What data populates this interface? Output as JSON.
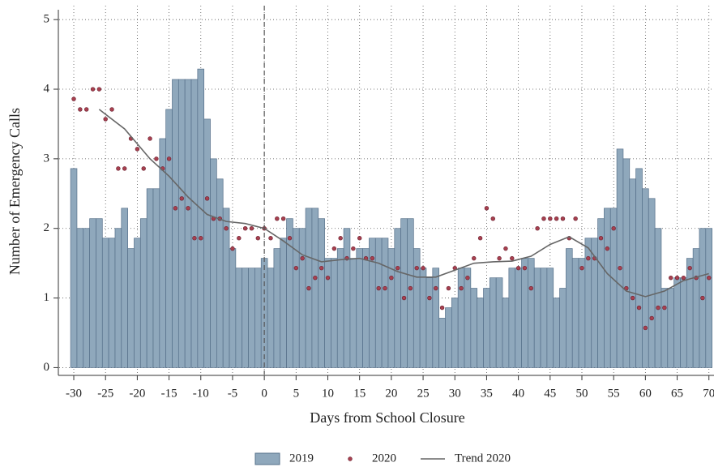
{
  "chart_data": {
    "type": "bar-scatter-line",
    "x_label": "Days from School Closure",
    "y_label": "Number of Emergency Calls",
    "x": [
      -30,
      -29,
      -28,
      -27,
      -26,
      -25,
      -24,
      -23,
      -22,
      -21,
      -20,
      -19,
      -18,
      -17,
      -16,
      -15,
      -14,
      -13,
      -12,
      -11,
      -10,
      -9,
      -8,
      -7,
      -6,
      -5,
      -4,
      -3,
      -2,
      -1,
      0,
      1,
      2,
      3,
      4,
      5,
      6,
      7,
      8,
      9,
      10,
      11,
      12,
      13,
      14,
      15,
      16,
      17,
      18,
      19,
      20,
      21,
      22,
      23,
      24,
      25,
      26,
      27,
      28,
      29,
      30,
      31,
      32,
      33,
      34,
      35,
      36,
      37,
      38,
      39,
      40,
      41,
      42,
      43,
      44,
      45,
      46,
      47,
      48,
      49,
      50,
      51,
      52,
      53,
      54,
      55,
      56,
      57,
      58,
      59,
      60,
      61,
      62,
      63,
      64,
      65,
      66,
      67,
      68,
      69,
      70
    ],
    "series": [
      {
        "name": "2019",
        "kind": "bar",
        "color": "#8fa8bc",
        "values": [
          2.86,
          2.0,
          2.0,
          2.14,
          2.14,
          1.86,
          1.86,
          2.0,
          2.29,
          1.71,
          1.86,
          2.14,
          2.57,
          2.57,
          3.29,
          3.71,
          4.14,
          4.14,
          4.14,
          4.14,
          4.29,
          3.57,
          3.0,
          2.71,
          2.29,
          1.71,
          1.43,
          1.43,
          1.43,
          1.43,
          1.57,
          1.43,
          1.71,
          1.86,
          2.14,
          2.0,
          2.0,
          2.29,
          2.29,
          2.14,
          1.57,
          1.57,
          1.71,
          2.0,
          1.57,
          1.71,
          1.71,
          1.86,
          1.86,
          1.86,
          1.71,
          2.0,
          2.14,
          2.14,
          1.71,
          1.43,
          1.29,
          1.43,
          0.71,
          0.86,
          1.0,
          1.43,
          1.43,
          1.14,
          1.0,
          1.14,
          1.29,
          1.29,
          1.0,
          1.43,
          1.43,
          1.57,
          1.57,
          1.43,
          1.43,
          1.43,
          1.0,
          1.14,
          1.71,
          1.57,
          1.57,
          1.86,
          1.86,
          2.14,
          2.29,
          2.29,
          3.14,
          3.0,
          2.71,
          2.86,
          2.57,
          2.43,
          2.0,
          1.14,
          1.14,
          1.29,
          1.29,
          1.57,
          1.71,
          2.0,
          2.0
        ]
      },
      {
        "name": "2020",
        "kind": "scatter",
        "color": "#a8404f",
        "values": [
          3.86,
          3.71,
          3.71,
          4.0,
          4.0,
          3.57,
          3.71,
          2.86,
          2.86,
          3.29,
          3.14,
          2.86,
          3.29,
          3.0,
          2.86,
          3.0,
          2.29,
          2.43,
          2.29,
          1.86,
          1.86,
          2.43,
          2.14,
          2.14,
          2.0,
          1.71,
          1.86,
          2.0,
          2.0,
          1.86,
          2.0,
          1.86,
          2.14,
          2.14,
          1.86,
          1.43,
          1.57,
          1.14,
          1.29,
          1.43,
          1.29,
          1.71,
          1.86,
          1.57,
          1.71,
          1.86,
          1.57,
          1.57,
          1.14,
          1.14,
          1.29,
          1.43,
          1.0,
          1.14,
          1.43,
          1.43,
          1.0,
          1.14,
          0.86,
          1.14,
          1.43,
          1.14,
          1.29,
          1.57,
          1.86,
          2.29,
          2.14,
          1.57,
          1.71,
          1.57,
          1.43,
          1.43,
          1.14,
          2.0,
          2.14,
          2.14,
          2.14,
          2.14,
          1.86,
          2.14,
          1.43,
          1.57,
          1.57,
          1.86,
          1.71,
          2.0,
          1.43,
          1.14,
          1.0,
          0.86,
          0.57,
          0.71,
          0.86,
          0.86,
          1.29,
          1.29,
          1.29,
          1.43,
          1.29,
          1.0,
          1.29
        ]
      },
      {
        "name": "Trend 2020",
        "kind": "line",
        "color": "#666666",
        "x": [
          -26,
          -22,
          -18,
          -15,
          -12,
          -9,
          -6,
          -3,
          0,
          3,
          6,
          9,
          12,
          15,
          18,
          21,
          24,
          27,
          30,
          33,
          36,
          39,
          42,
          45,
          48,
          51,
          54,
          57,
          60,
          63,
          66,
          70
        ],
        "values": [
          3.71,
          3.43,
          3.0,
          2.75,
          2.45,
          2.2,
          2.1,
          2.07,
          2.0,
          1.82,
          1.62,
          1.52,
          1.55,
          1.57,
          1.5,
          1.38,
          1.3,
          1.3,
          1.4,
          1.5,
          1.52,
          1.53,
          1.6,
          1.77,
          1.88,
          1.72,
          1.35,
          1.1,
          1.02,
          1.1,
          1.25,
          1.35
        ]
      }
    ],
    "vline": 0,
    "xlim": [
      -32.3,
      70.8
    ],
    "ylim": [
      -0.1,
      5.2
    ],
    "xticks": [
      -30,
      -25,
      -20,
      -15,
      -10,
      -5,
      0,
      5,
      10,
      15,
      20,
      25,
      30,
      35,
      40,
      45,
      50,
      55,
      60,
      65,
      70
    ],
    "yticks": [
      0,
      1,
      2,
      3,
      4,
      5
    ],
    "grid": true,
    "legend": "bottom"
  }
}
